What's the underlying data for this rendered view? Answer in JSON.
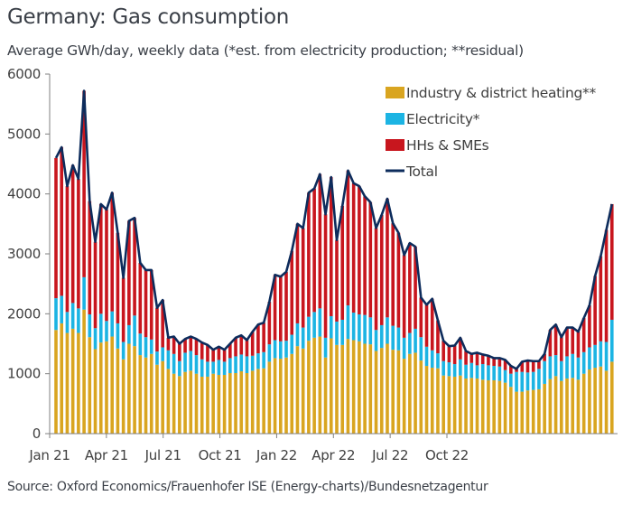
{
  "title": "Germany: Gas consumption",
  "subtitle": "Average GWh/day, weekly data (*est. from electricity production; **residual)",
  "source": "Source: Oxford Economics/Frauenhofer ISE (Energy-charts)/Bundesnetzagentur",
  "colors": {
    "industry": "#d9a520",
    "electricity": "#1cb4e3",
    "households": "#c8161e",
    "total": "#0d2c5c",
    "axis": "#808080"
  },
  "chart_data": {
    "type": "bar",
    "stacked": true,
    "title": "Germany: Gas consumption",
    "subtitle": "Average GWh/day, weekly data (*est. from electricity production; **residual)",
    "xlabel": "",
    "ylabel": "GWh/day",
    "ylim": [
      0,
      6000
    ],
    "yticks": [
      0,
      1000,
      2000,
      3000,
      4000,
      5000,
      6000
    ],
    "xtick_labels": [
      "Jan 21",
      "Apr 21",
      "Jul 21",
      "Oct 21",
      "Jan 22",
      "Apr 22",
      "Jul 22",
      "Oct 22"
    ],
    "xtick_week_index": [
      0,
      13,
      26,
      39,
      52,
      65,
      78,
      91
    ],
    "grid": false,
    "legend_position": "top-right",
    "legend": [
      "Industry & district heating**",
      "Electricity*",
      "HHs & SMEs",
      "Total"
    ],
    "frequency": "weekly",
    "start": "Jan 2021",
    "series": [
      {
        "name": "Industry & district heating**",
        "type": "bar",
        "values": [
          1730,
          1840,
          1680,
          1750,
          1680,
          2070,
          1610,
          1410,
          1520,
          1540,
          1620,
          1420,
          1240,
          1500,
          1460,
          1310,
          1270,
          1330,
          1150,
          1210,
          1080,
          1000,
          960,
          1030,
          1050,
          1000,
          950,
          950,
          1000,
          980,
          980,
          1010,
          1010,
          1040,
          1010,
          1050,
          1080,
          1090,
          1200,
          1260,
          1250,
          1270,
          1330,
          1460,
          1420,
          1550,
          1600,
          1620,
          1270,
          1590,
          1480,
          1480,
          1580,
          1560,
          1540,
          1500,
          1490,
          1380,
          1430,
          1500,
          1400,
          1390,
          1250,
          1330,
          1350,
          1220,
          1130,
          1100,
          1090,
          970,
          960,
          950,
          970,
          920,
          930,
          920,
          900,
          890,
          890,
          880,
          850,
          780,
          700,
          700,
          720,
          730,
          740,
          830,
          910,
          960,
          880,
          920,
          930,
          900,
          1000,
          1070,
          1100,
          1120,
          1050,
          1200
        ]
      },
      {
        "name": "Electricity*",
        "type": "bar",
        "values": [
          530,
          460,
          350,
          430,
          410,
          540,
          380,
          350,
          480,
          340,
          420,
          420,
          290,
          310,
          510,
          360,
          340,
          240,
          220,
          230,
          310,
          330,
          250,
          320,
          330,
          310,
          290,
          250,
          200,
          250,
          220,
          250,
          280,
          280,
          280,
          250,
          260,
          270,
          290,
          300,
          290,
          280,
          320,
          380,
          350,
          400,
          430,
          470,
          330,
          370,
          390,
          420,
          560,
          460,
          450,
          480,
          450,
          350,
          380,
          440,
          400,
          380,
          350,
          350,
          400,
          390,
          320,
          290,
          250,
          240,
          230,
          210,
          270,
          230,
          250,
          220,
          260,
          250,
          240,
          240,
          210,
          220,
          330,
          330,
          300,
          300,
          340,
          380,
          380,
          350,
          330,
          370,
          400,
          370,
          360,
          370,
          380,
          420,
          480,
          700
        ]
      },
      {
        "name": "HHs & SMEs",
        "type": "bar",
        "values": [
          2340,
          2480,
          2100,
          2300,
          2160,
          3110,
          1890,
          1440,
          1830,
          1860,
          1980,
          1510,
          1070,
          1740,
          1630,
          1180,
          1120,
          1160,
          730,
          790,
          210,
          290,
          290,
          230,
          240,
          270,
          280,
          280,
          200,
          220,
          200,
          240,
          310,
          320,
          270,
          400,
          480,
          490,
          710,
          1090,
          1080,
          1150,
          1400,
          1660,
          1660,
          2070,
          2060,
          2240,
          2060,
          2320,
          1360,
          1900,
          2250,
          2160,
          2140,
          1980,
          1920,
          1700,
          1840,
          1980,
          1710,
          1580,
          1380,
          1500,
          1370,
          660,
          700,
          860,
          550,
          340,
          270,
          310,
          360,
          230,
          150,
          210,
          160,
          160,
          130,
          140,
          170,
          130,
          50,
          170,
          200,
          180,
          130,
          120,
          440,
          510,
          400,
          480,
          440,
          430,
          570,
          700,
          1150,
          1420,
          1870,
          1930
        ]
      },
      {
        "name": "Total",
        "type": "line",
        "values": [
          4600,
          4780,
          4130,
          4480,
          4250,
          5720,
          3880,
          3200,
          3830,
          3740,
          4020,
          3350,
          2600,
          3550,
          3600,
          2850,
          2730,
          2730,
          2100,
          2230,
          1600,
          1620,
          1500,
          1580,
          1620,
          1580,
          1520,
          1480,
          1400,
          1450,
          1400,
          1500,
          1600,
          1640,
          1560,
          1700,
          1820,
          1850,
          2200,
          2650,
          2620,
          2700,
          3050,
          3500,
          3430,
          4020,
          4090,
          4330,
          3660,
          4280,
          3230,
          3800,
          4390,
          4180,
          4130,
          3960,
          3860,
          3430,
          3650,
          3920,
          3510,
          3350,
          2980,
          3180,
          3120,
          2270,
          2150,
          2250,
          1890,
          1550,
          1460,
          1470,
          1600,
          1380,
          1330,
          1350,
          1320,
          1300,
          1260,
          1260,
          1230,
          1130,
          1080,
          1200,
          1220,
          1210,
          1210,
          1330,
          1730,
          1820,
          1610,
          1770,
          1770,
          1700,
          1930,
          2140,
          2630,
          2960,
          3400,
          3830
        ]
      }
    ]
  }
}
